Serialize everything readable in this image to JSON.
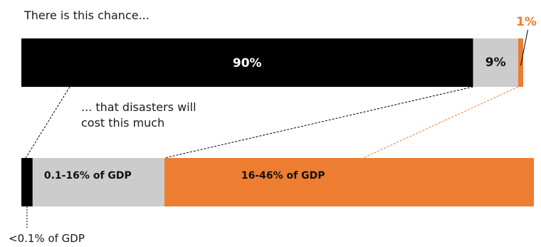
{
  "intro_text": "There is this chance...",
  "caption_line1": "... that disasters will",
  "caption_line2": "cost this much",
  "chart_data": {
    "type": "bar",
    "title": "",
    "xlabel": "",
    "ylabel": "",
    "probability_bar": {
      "segments": [
        {
          "label": "90%",
          "value": 90,
          "color": "#000000",
          "text_color": "#ffffff"
        },
        {
          "label": "9%",
          "value": 9,
          "color": "#cccccc",
          "text_color": "#111111"
        },
        {
          "label": "1%",
          "value": 1,
          "color": "#ed7d31",
          "text_color": "#ed7d31"
        }
      ]
    },
    "cost_bar": {
      "segments": [
        {
          "label": "<0.1% of GDP",
          "value": 2.2,
          "color": "#000000"
        },
        {
          "label": "0.1-16% of GDP",
          "value": 25.7,
          "color": "#cccccc"
        },
        {
          "label": "16-46% of GDP",
          "value": 72.1,
          "color": "#ed7d31"
        }
      ]
    },
    "connector_colors": {
      "dark": "#000000",
      "accent": "#ed7d31"
    }
  }
}
